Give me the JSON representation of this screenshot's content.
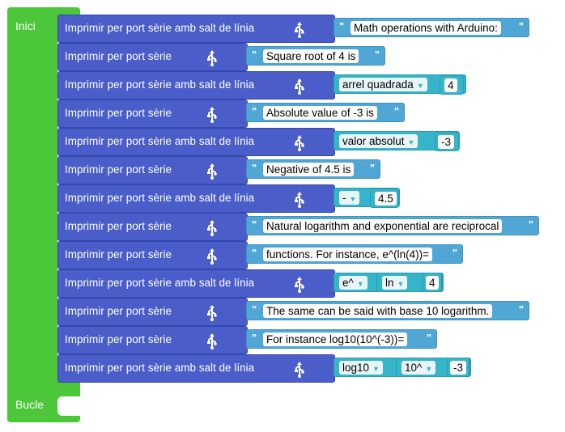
{
  "setup_label": "Inici",
  "loop_label": "Bucle",
  "println_label": "Imprimir per port sèrie amb salt de línia",
  "print_label": "Imprimir per port sèrie",
  "quote_char": "\"",
  "icons": {
    "usb": "usb-icon"
  },
  "colors": {
    "green": "#4cc73a",
    "blue": "#4a5dc9",
    "cyan": "#36b4c9",
    "text_block": "#50a7d6"
  },
  "rows": [
    {
      "kind": "println",
      "text": "Math operations with Arduino:"
    },
    {
      "kind": "print",
      "text": "Square root of 4 is "
    },
    {
      "kind": "println",
      "op": "arrel quadrada",
      "arg": "4"
    },
    {
      "kind": "print",
      "text": "Absolute value of -3 is "
    },
    {
      "kind": "println",
      "op": "valor absolut",
      "arg": "-3"
    },
    {
      "kind": "print",
      "text": "Negative of 4.5 is "
    },
    {
      "kind": "println",
      "op": "-",
      "arg": "4.5"
    },
    {
      "kind": "print",
      "text": "Natural logarithm and exponential are reciprocal "
    },
    {
      "kind": "print",
      "text": "functions. For instance, e^(ln(4))= "
    },
    {
      "kind": "println",
      "op": "e^",
      "op2": "ln",
      "arg": "4"
    },
    {
      "kind": "print",
      "text": "The same can be said with base 10 logarithm."
    },
    {
      "kind": "print",
      "text": " For instance log10(10^(-3))= "
    },
    {
      "kind": "println",
      "op": "log10",
      "op2": "10^",
      "arg": "-3"
    }
  ]
}
